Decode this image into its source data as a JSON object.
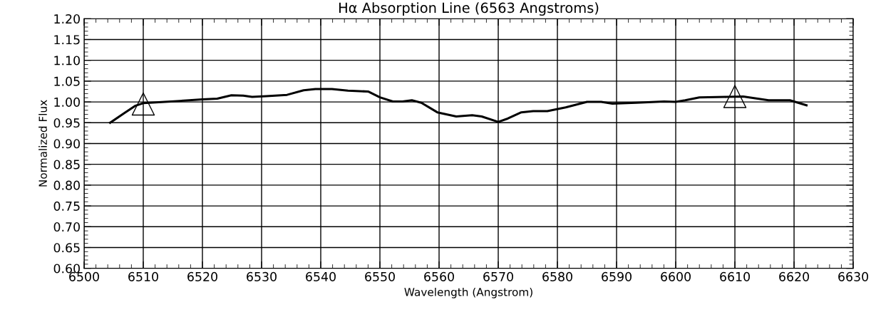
{
  "chart_data": {
    "type": "line",
    "title": "Hα Absorption Line (6563 Angstroms)",
    "xlabel": "Wavelength (Angstrom)",
    "ylabel": "Normalized Flux",
    "series": [
      {
        "color": "#000000",
        "marker": "none",
        "line_style": "solid",
        "x": [
          6504.4,
          6506.8,
          6508.7,
          6510,
          6514.7,
          6520,
          6522.5,
          6524.9,
          6526.9,
          6528.4,
          6530.8,
          6534.3,
          6537.1,
          6539.1,
          6541.9,
          6544.6,
          6548,
          6550,
          6552.2,
          6553.8,
          6555.4,
          6557,
          6559.7,
          6562.9,
          6565.6,
          6567.2,
          6570,
          6571.6,
          6573.9,
          6575.9,
          6578.3,
          6581.4,
          6585,
          6587.4,
          6589.3,
          6593.3,
          6598,
          6600,
          6601.6,
          6604,
          6608.6,
          6611.4,
          6615.7,
          6619.3,
          6622.1
        ],
        "values": [
          0.95,
          0.973,
          0.991,
          0.997,
          1.001,
          1.006,
          1.008,
          1.016,
          1.015,
          1.012,
          1.014,
          1.017,
          1.028,
          1.031,
          1.031,
          1.027,
          1.025,
          1.011,
          1.001,
          1.001,
          1.004,
          0.998,
          0.975,
          0.965,
          0.968,
          0.965,
          0.952,
          0.96,
          0.975,
          0.978,
          0.978,
          0.987,
          1.0,
          1.0,
          0.996,
          0.998,
          1.001,
          1.0,
          1.004,
          1.011,
          1.012,
          1.013,
          1.004,
          1.004,
          0.992
        ]
      },
      {
        "type": "scatter",
        "color": "#000000",
        "marker": "triangle",
        "x": [
          6510,
          6610
        ],
        "values": [
          0.995,
          1.013
        ]
      }
    ],
    "xlim": [
      6500,
      6630
    ],
    "xticks": [
      6500,
      6510,
      6520,
      6530,
      6540,
      6550,
      6560,
      6570,
      6580,
      6590,
      6600,
      6610,
      6620,
      6630
    ],
    "ylim": [
      0.6,
      1.2
    ],
    "yticks": [
      {
        "value": 0.6,
        "label": "0.60"
      },
      {
        "value": 0.65,
        "label": "0.65"
      },
      {
        "value": 0.7,
        "label": "0.70"
      },
      {
        "value": 0.75,
        "label": "0.75"
      },
      {
        "value": 0.8,
        "label": "0.80"
      },
      {
        "value": 0.85,
        "label": "0.85"
      },
      {
        "value": 0.9,
        "label": "0.90"
      },
      {
        "value": 0.95,
        "label": "0.95"
      },
      {
        "value": 1.0,
        "label": "1.00"
      },
      {
        "value": 1.05,
        "label": "1.05"
      },
      {
        "value": 1.1,
        "label": "1.10"
      },
      {
        "value": 1.15,
        "label": "1.15"
      },
      {
        "value": 1.2,
        "label": "1.20"
      }
    ],
    "grid": true,
    "legend": false
  }
}
